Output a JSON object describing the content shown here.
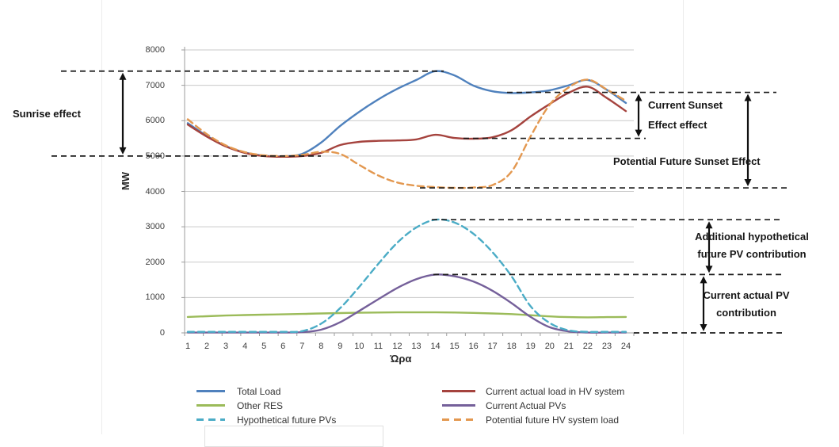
{
  "chart_data": {
    "type": "line",
    "title": "",
    "xlabel": "Ώρα",
    "ylabel": "MW",
    "x": [
      1,
      2,
      3,
      4,
      5,
      6,
      7,
      8,
      9,
      10,
      11,
      12,
      13,
      14,
      15,
      16,
      17,
      18,
      19,
      20,
      21,
      22,
      23,
      24
    ],
    "ylim": [
      0,
      8000
    ],
    "yticks": [
      0,
      1000,
      2000,
      3000,
      4000,
      5000,
      6000,
      7000,
      8000
    ],
    "grid": "horizontal",
    "legend_position": "bottom",
    "series": [
      {
        "name": "Total Load",
        "color": "#4F81BD",
        "dashed": false,
        "values": [
          5930,
          5570,
          5280,
          5100,
          5010,
          4990,
          5060,
          5380,
          5850,
          6250,
          6600,
          6900,
          7150,
          7400,
          7280,
          6990,
          6830,
          6780,
          6800,
          6860,
          7000,
          7150,
          6870,
          6500
        ]
      },
      {
        "name": "Current actual load in HV system",
        "color": "#A5433E",
        "dashed": false,
        "values": [
          5890,
          5550,
          5270,
          5090,
          5000,
          4980,
          5000,
          5090,
          5310,
          5400,
          5430,
          5440,
          5470,
          5600,
          5510,
          5490,
          5530,
          5730,
          6120,
          6470,
          6790,
          6960,
          6640,
          6270
        ]
      },
      {
        "name": "Other RES",
        "color": "#9BBB59",
        "dashed": false,
        "values": [
          450,
          470,
          490,
          505,
          515,
          525,
          535,
          550,
          560,
          570,
          575,
          580,
          580,
          580,
          575,
          565,
          550,
          530,
          500,
          465,
          445,
          440,
          445,
          450
        ]
      },
      {
        "name": "Current Actual PVs",
        "color": "#75609A",
        "dashed": false,
        "values": [
          10,
          10,
          10,
          10,
          10,
          10,
          20,
          90,
          300,
          620,
          950,
          1270,
          1520,
          1650,
          1600,
          1450,
          1190,
          840,
          450,
          160,
          40,
          10,
          10,
          10
        ]
      },
      {
        "name": "Hypothetical future PVs",
        "color": "#4BACC6",
        "dashed": true,
        "values": [
          30,
          30,
          30,
          30,
          30,
          30,
          50,
          260,
          700,
          1300,
          1950,
          2550,
          2980,
          3200,
          3120,
          2800,
          2280,
          1600,
          750,
          280,
          70,
          30,
          30,
          30
        ]
      },
      {
        "name": "Potential future HV system load",
        "color": "#E39850",
        "dashed": true,
        "values": [
          6040,
          5620,
          5300,
          5110,
          5020,
          5000,
          5030,
          5120,
          5060,
          4750,
          4450,
          4250,
          4160,
          4120,
          4100,
          4110,
          4180,
          4560,
          5560,
          6450,
          6940,
          7160,
          6880,
          6560
        ]
      }
    ],
    "annotation_levels": [
      {
        "id": "total-load-peak",
        "mw": 7400
      },
      {
        "id": "morning-base",
        "mw": 5000
      },
      {
        "id": "evening-peak-level",
        "mw": 6800
      },
      {
        "id": "current-hv-afternoon",
        "mw": 5500
      },
      {
        "id": "potential-future-min",
        "mw": 4100
      },
      {
        "id": "hypothetical-pv-peak",
        "mw": 3200
      },
      {
        "id": "current-pv-peak",
        "mw": 1650
      },
      {
        "id": "zero-level",
        "mw": 0
      }
    ],
    "arrows": [
      {
        "id": "sunrise",
        "from_mw": 7400,
        "to_mw": 5000
      },
      {
        "id": "current-sunset",
        "from_mw": 6800,
        "to_mw": 5500
      },
      {
        "id": "potential-sunset",
        "from_mw": 6800,
        "to_mw": 4100
      },
      {
        "id": "additional-pv",
        "from_mw": 3200,
        "to_mw": 1650
      },
      {
        "id": "current-pv",
        "from_mw": 1650,
        "to_mw": 0
      }
    ],
    "annotations": {
      "sunrise_effect": "Sunrise effect",
      "current_sunset_effect": [
        "Current Sunset",
        "Effect effect"
      ],
      "potential_future_sunset_effect": "Potential Future Sunset Effect",
      "additional_hypothetical": [
        "Additional hypothetical",
        "future PV contribution"
      ],
      "current_actual_pv": [
        "Current actual PV",
        "contribution"
      ]
    }
  },
  "legend": {
    "columns": [
      {
        "items": [
          {
            "label": "Total Load",
            "color": "#4F81BD",
            "dashed": false
          },
          {
            "label": "Other RES",
            "color": "#9BBB59",
            "dashed": false
          },
          {
            "label": "Hypothetical future PVs",
            "color": "#4BACC6",
            "dashed": true
          }
        ]
      },
      {
        "items": [
          {
            "label": "Current actual load in HV system",
            "color": "#A5433E",
            "dashed": false
          },
          {
            "label": "Current Actual PVs",
            "color": "#75609A",
            "dashed": false
          },
          {
            "label": "Potential future HV system load",
            "color": "#E39850",
            "dashed": true
          }
        ]
      }
    ]
  }
}
